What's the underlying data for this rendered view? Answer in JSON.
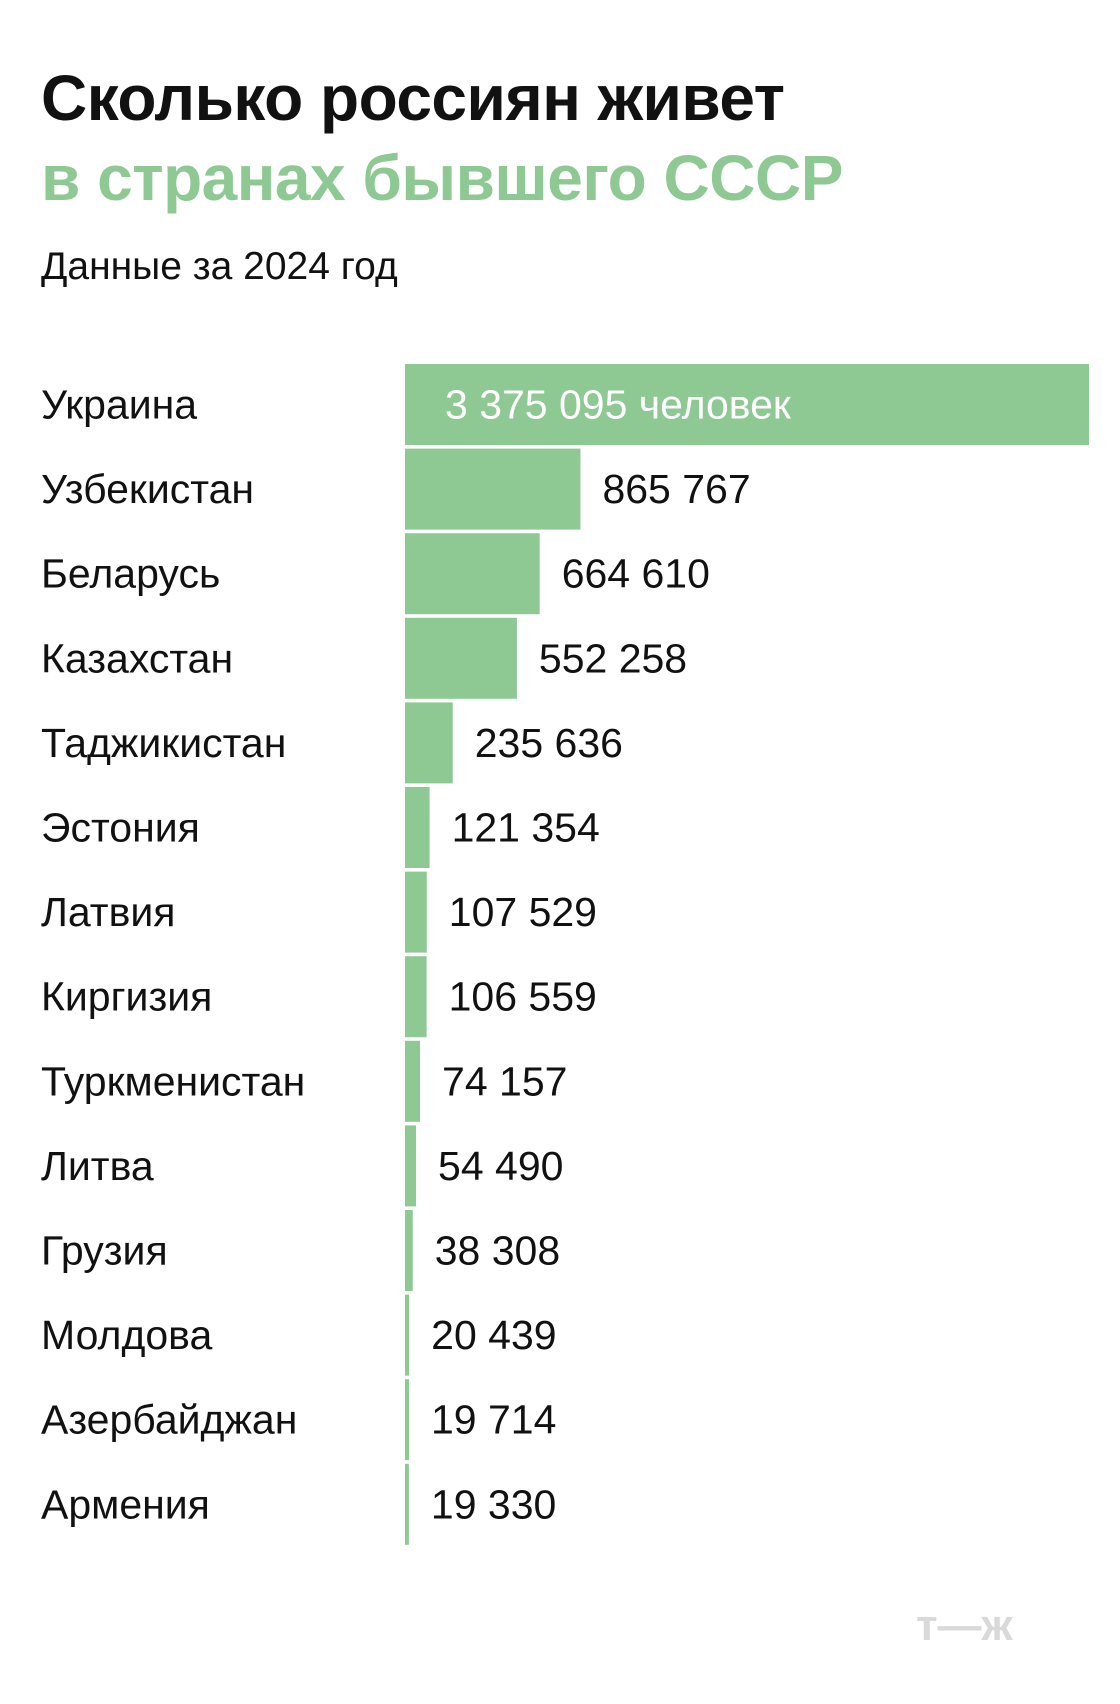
{
  "header": {
    "title_line1": "Сколько россиян живет",
    "title_line2": "в странах бывшего СССР",
    "subtitle": "Данные за 2024 год"
  },
  "brand": {
    "logo": "т—ж"
  },
  "colors": {
    "bar": "#8ec994",
    "accent": "#8ec994",
    "text": "#111111",
    "logo": "#d9d9d9"
  },
  "chart_data": {
    "type": "bar",
    "orientation": "horizontal",
    "title": "Сколько россиян живет в странах бывшего СССР",
    "subtitle": "Данные за 2024 год",
    "categories": [
      "Украина",
      "Узбекистан",
      "Беларусь",
      "Казахстан",
      "Таджикистан",
      "Эстония",
      "Латвия",
      "Киргизия",
      "Туркменистан",
      "Литва",
      "Грузия",
      "Молдова",
      "Азербайджан",
      "Армения"
    ],
    "values": [
      3375095,
      865767,
      664610,
      552258,
      235636,
      121354,
      107529,
      106559,
      74157,
      54490,
      38308,
      20439,
      19714,
      19330
    ],
    "value_labels": [
      "3 375 095 человек",
      "865 767",
      "664 610",
      "552 258",
      "235 636",
      "121 354",
      "107 529",
      "106 559",
      "74 157",
      "54 490",
      "38 308",
      "20 439",
      "19 714",
      "19 330"
    ],
    "xlim": [
      0,
      3375095
    ],
    "grid": false,
    "legend": "none"
  }
}
